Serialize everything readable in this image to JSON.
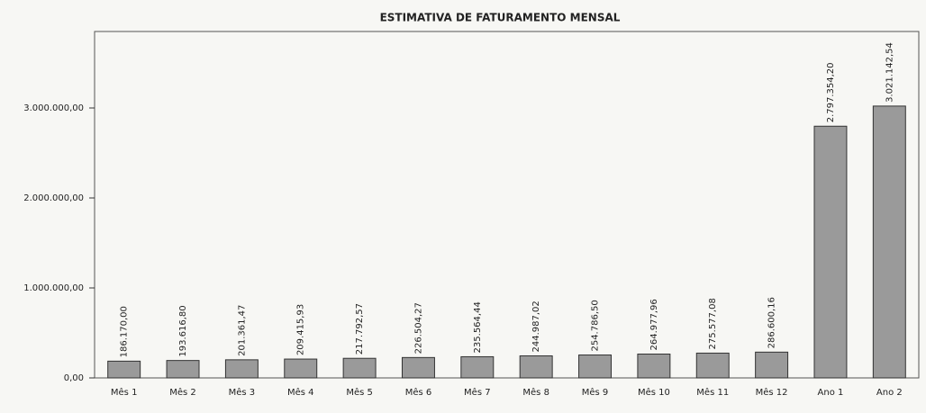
{
  "chart_data": {
    "type": "bar",
    "title": "ESTIMATIVA DE FATURAMENTO MENSAL",
    "categories": [
      "Mês 1",
      "Mês 2",
      "Mês 3",
      "Mês 4",
      "Mês 5",
      "Mês 6",
      "Mês 7",
      "Mês 8",
      "Mês 9",
      "Mês 10",
      "Mês 11",
      "Mês 12",
      "Ano 1",
      "Ano 2"
    ],
    "values": [
      186170.0,
      193616.8,
      201361.47,
      209415.93,
      217792.57,
      226504.27,
      235564.44,
      244987.02,
      254786.5,
      264977.96,
      275577.08,
      286600.16,
      2797354.2,
      3021142.54
    ],
    "value_labels": [
      "186.170,00",
      "193.616,80",
      "201.361,47",
      "209.415,93",
      "217.792,57",
      "226.504,27",
      "235.564,44",
      "244.987,02",
      "254.786,50",
      "264.977,96",
      "275.577,08",
      "286.600,16",
      "2.797.354,20",
      "3.021.142,54"
    ],
    "color": "#9a9a9a",
    "ylim": [
      0,
      3850000
    ],
    "yticks": [
      {
        "value": 0,
        "label": "0,00"
      },
      {
        "value": 1000000,
        "label": "1.000.000,00"
      },
      {
        "value": 2000000,
        "label": "2.000.000,00"
      },
      {
        "value": 3000000,
        "label": "3.000.000,00"
      }
    ],
    "grid": false
  }
}
